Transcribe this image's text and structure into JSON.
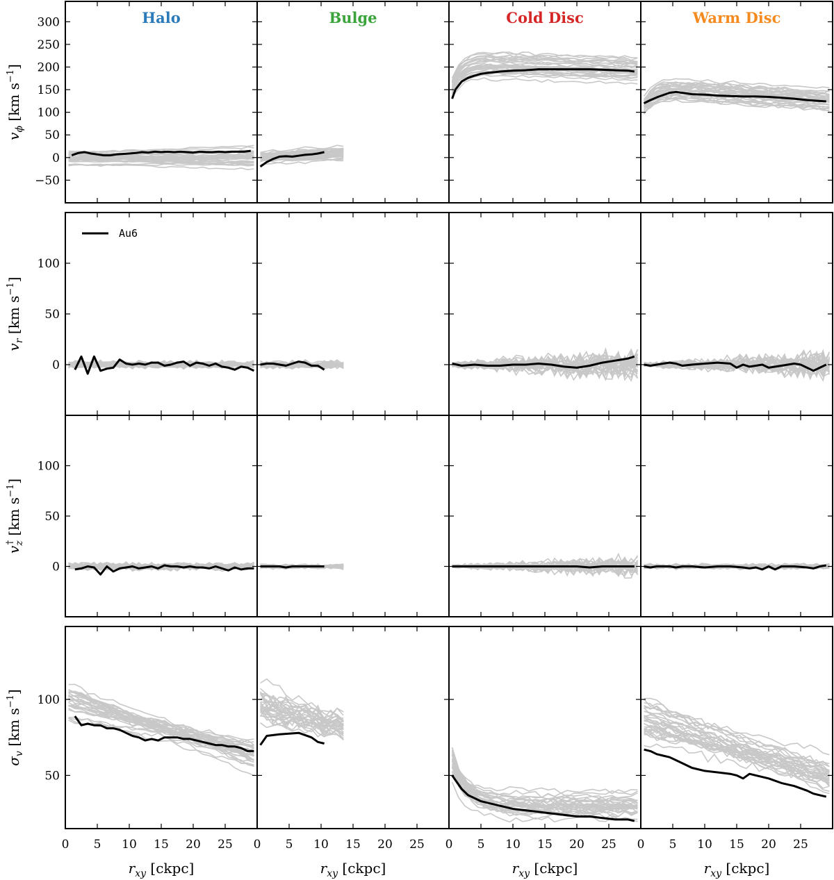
{
  "chart_data": {
    "type": "line",
    "columns": [
      {
        "key": "halo",
        "title": "Halo",
        "color": "#2b7bba"
      },
      {
        "key": "bulge",
        "title": "Bulge",
        "color": "#3aa33a"
      },
      {
        "key": "cold",
        "title": "Cold Disc",
        "color": "#d62728"
      },
      {
        "key": "warm",
        "title": "Warm Disc",
        "color": "#f58a1f"
      }
    ],
    "rows": [
      {
        "key": "vphi",
        "ylabel": "v_ϕ [km s⁻¹]",
        "ylim": [
          -100,
          345
        ],
        "yticks": [
          -50,
          0,
          50,
          100,
          150,
          200,
          250,
          300
        ]
      },
      {
        "key": "vr",
        "ylabel": "v_r [km s⁻¹]",
        "ylim": [
          -50,
          150
        ],
        "yticks": [
          0,
          50,
          100
        ]
      },
      {
        "key": "vz",
        "ylabel": "v_z^† [km s⁻¹]",
        "ylim": [
          -50,
          150
        ],
        "yticks": [
          0,
          50,
          100
        ]
      },
      {
        "key": "sigma",
        "ylabel": "σ_v [km s⁻¹]",
        "ylim": [
          15,
          148
        ],
        "yticks": [
          50,
          100
        ]
      }
    ],
    "xlim": [
      0,
      30
    ],
    "xticks": [
      0,
      5,
      10,
      15,
      20,
      25
    ],
    "xlabel": "r_xy [ckpc]",
    "legend": {
      "label": "Au6",
      "location": "top-left",
      "panel": "vr-halo"
    },
    "highlight": {
      "name": "Au6",
      "vphi": {
        "halo": {
          "x": [
            1,
            2,
            3,
            4,
            5,
            6,
            7,
            8,
            9,
            10,
            11,
            12,
            13,
            14,
            15,
            16,
            17,
            18,
            19,
            20,
            21,
            22,
            23,
            24,
            25,
            26,
            27,
            28,
            29
          ],
          "y": [
            5,
            10,
            12,
            9,
            7,
            5,
            5,
            7,
            8,
            9,
            10,
            12,
            11,
            13,
            12,
            13,
            12,
            13,
            12,
            11,
            13,
            12,
            12,
            13,
            12,
            13,
            13,
            13,
            15
          ]
        },
        "bulge": {
          "x": [
            0.5,
            1.5,
            2.5,
            3.5,
            4.5,
            5.5,
            6.5,
            7.5,
            8.5,
            9.5,
            10.5
          ],
          "y": [
            -20,
            -10,
            -3,
            2,
            3,
            2,
            4,
            6,
            7,
            9,
            12
          ]
        },
        "cold": {
          "x": [
            0.5,
            1,
            2,
            3,
            4,
            5,
            6,
            8,
            10,
            12,
            14,
            16,
            18,
            20,
            22,
            24,
            26,
            28,
            29
          ],
          "y": [
            130,
            150,
            168,
            176,
            181,
            185,
            187,
            190,
            192,
            193,
            195,
            195,
            195,
            195,
            195,
            194,
            193,
            192,
            190
          ]
        },
        "warm": {
          "x": [
            0.5,
            1.5,
            2.5,
            3.5,
            4.5,
            5.5,
            6.5,
            8,
            10,
            12,
            14,
            16,
            18,
            20,
            22,
            24,
            26,
            28,
            29
          ],
          "y": [
            120,
            127,
            133,
            138,
            143,
            145,
            143,
            140,
            139,
            137,
            136,
            135,
            135,
            134,
            132,
            130,
            127,
            125,
            124
          ]
        }
      },
      "vr": {
        "halo": {
          "x": [
            1.5,
            2.5,
            3.5,
            4.5,
            5.5,
            6.5,
            7.5,
            8.5,
            9.5,
            10.5,
            11.5,
            12.5,
            13.5,
            14.5,
            15.5,
            16.5,
            17.5,
            18.5,
            19.5,
            20.5,
            21.5,
            22.5,
            23.5,
            24.5,
            25.5,
            26.5,
            27.5,
            28.5,
            29.5
          ],
          "y": [
            -5,
            8,
            -9,
            8,
            -6,
            -4,
            -3,
            5,
            1,
            0,
            1,
            0,
            2,
            2,
            -1,
            0,
            2,
            3,
            -1,
            2,
            1,
            -1,
            1,
            -2,
            -3,
            -5,
            -2,
            -3,
            -6
          ]
        },
        "bulge": {
          "x": [
            0.5,
            1.5,
            2.5,
            3.5,
            4.5,
            5.5,
            6.5,
            7.5,
            8.5,
            9.5,
            10.5
          ],
          "y": [
            0,
            1,
            1,
            0,
            -1,
            1,
            3,
            2,
            -1,
            -1,
            -5
          ]
        },
        "cold": {
          "x": [
            0.5,
            2,
            4,
            6,
            8,
            10,
            12,
            14,
            16,
            18,
            20,
            22,
            24,
            26,
            28,
            29
          ],
          "y": [
            1,
            -1,
            0,
            -1,
            -1,
            0,
            0,
            1,
            0,
            -2,
            -3,
            -1,
            2,
            4,
            6,
            8
          ]
        },
        "warm": {
          "x": [
            0.5,
            1.5,
            2.5,
            3.5,
            4.5,
            5.5,
            6.5,
            8,
            10,
            12,
            14,
            15,
            16,
            17,
            18,
            19,
            20,
            22,
            24,
            25,
            26,
            27,
            28,
            29
          ],
          "y": [
            0,
            -1,
            0,
            1,
            2,
            1,
            -1,
            0,
            1,
            2,
            1,
            -3,
            0,
            -2,
            -1,
            0,
            -3,
            -1,
            1,
            0,
            -3,
            -6,
            -3,
            0
          ]
        }
      },
      "vz": {
        "halo": {
          "x": [
            1.5,
            2.5,
            3.5,
            4.5,
            5.5,
            6.5,
            7.5,
            8.5,
            9.5,
            10.5,
            11.5,
            12.5,
            13.5,
            14.5,
            15.5,
            16.5,
            17.5,
            18.5,
            19.5,
            20.5,
            21.5,
            22.5,
            23.5,
            24.5,
            25.5,
            26.5,
            27.5,
            28.5,
            29.5
          ],
          "y": [
            -3,
            -2,
            0,
            -1,
            -8,
            0,
            -5,
            -2,
            -1,
            0,
            -2,
            -1,
            0,
            -2,
            1,
            0,
            0,
            -1,
            0,
            -1,
            -1,
            -2,
            0,
            -2,
            -4,
            -1,
            -3,
            -2,
            -2
          ]
        },
        "bulge": {
          "x": [
            0.5,
            1.5,
            2.5,
            3.5,
            4.5,
            5.5,
            6.5,
            7.5,
            8.5,
            9.5,
            10.5
          ],
          "y": [
            0,
            0,
            0,
            0,
            -1,
            0,
            0,
            0,
            0,
            0,
            0
          ]
        },
        "cold": {
          "x": [
            0.5,
            2,
            4,
            6,
            8,
            10,
            12,
            14,
            16,
            18,
            20,
            22,
            24,
            26,
            28,
            29
          ],
          "y": [
            0,
            0,
            0,
            0,
            0,
            0,
            0,
            0,
            0,
            0,
            0,
            -1,
            0,
            0,
            0,
            0
          ]
        },
        "warm": {
          "x": [
            0.5,
            1.5,
            2.5,
            3.5,
            4.5,
            5.5,
            6.5,
            8,
            10,
            12,
            14,
            16,
            17,
            18,
            19,
            20,
            21,
            22,
            24,
            26,
            27,
            28,
            29
          ],
          "y": [
            0,
            -1,
            0,
            0,
            0,
            -1,
            0,
            0,
            -1,
            0,
            0,
            -1,
            -2,
            -1,
            -3,
            0,
            -3,
            0,
            0,
            -1,
            -2,
            0,
            1
          ]
        }
      },
      "sigma": {
        "halo": {
          "x": [
            1.5,
            2.5,
            3.5,
            4.5,
            5.5,
            6.5,
            7.5,
            8.5,
            9.5,
            10.5,
            11.5,
            12.5,
            13.5,
            14.5,
            15.5,
            16.5,
            17.5,
            18.5,
            19.5,
            20.5,
            21.5,
            22.5,
            23.5,
            24.5,
            25.5,
            26.5,
            27.5,
            28.5,
            29.5
          ],
          "y": [
            89,
            83,
            84,
            83,
            83,
            81,
            81,
            80,
            78,
            76,
            75,
            73,
            74,
            73,
            75,
            75,
            75,
            74,
            74,
            73,
            72,
            71,
            70,
            70,
            69,
            69,
            68,
            66,
            66
          ]
        },
        "bulge": {
          "x": [
            0.5,
            1.5,
            3.5,
            6.5,
            8.5,
            9.5,
            10.5
          ],
          "y": [
            70,
            76,
            77,
            78,
            75,
            72,
            71
          ]
        },
        "cold": {
          "x": [
            0.5,
            1,
            2,
            3,
            4,
            5,
            6,
            8,
            10,
            12,
            14,
            16,
            18,
            20,
            22,
            24,
            26,
            28,
            29
          ],
          "y": [
            50,
            47,
            41,
            37,
            35,
            33,
            32,
            30,
            28,
            27,
            26,
            25,
            24,
            23,
            23,
            22,
            21,
            21,
            20
          ]
        },
        "warm": {
          "x": [
            0.5,
            1.5,
            2.5,
            3.5,
            4.5,
            5.5,
            6.5,
            8,
            10,
            12,
            14,
            15,
            16,
            17,
            18,
            20,
            22,
            24,
            26,
            27,
            28,
            29
          ],
          "y": [
            67,
            66,
            64,
            63,
            62,
            60,
            58,
            55,
            53,
            52,
            51,
            50,
            48,
            51,
            50,
            48,
            45,
            43,
            40,
            38,
            37,
            36
          ]
        }
      }
    }
  }
}
